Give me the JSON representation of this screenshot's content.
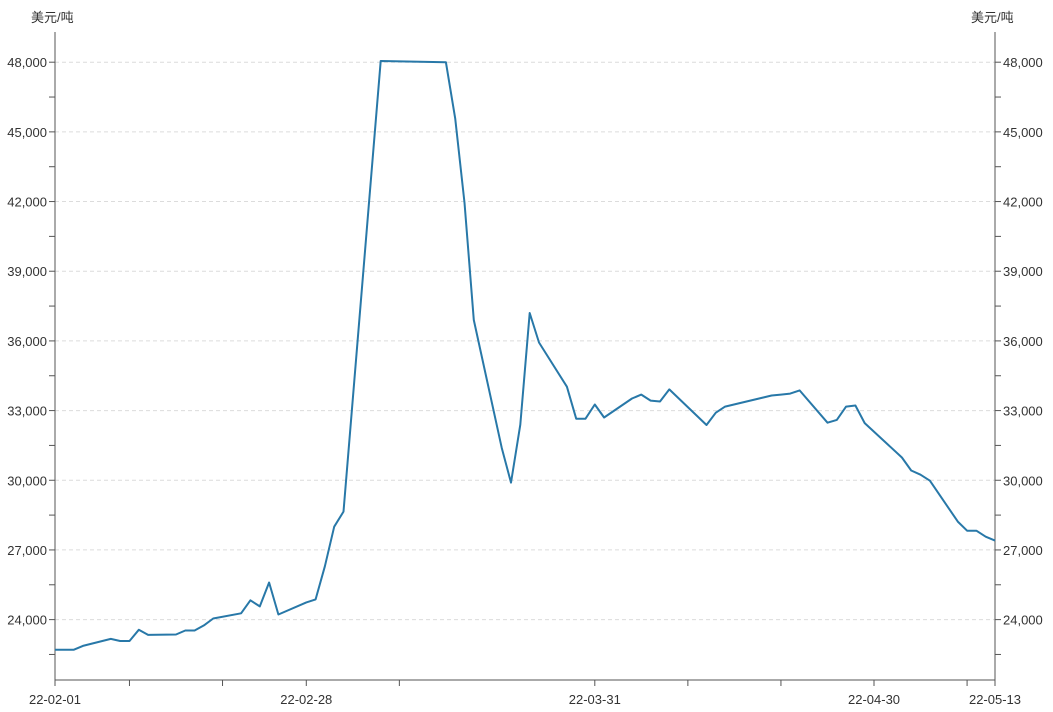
{
  "chart_data": {
    "type": "line",
    "title": "",
    "ylabel_left": "美元/吨",
    "ylabel_right": "美元/吨",
    "xlabel": "",
    "ylim": [
      21400,
      49300
    ],
    "xlim": [
      "2022-02-01",
      "2022-05-13"
    ],
    "y_ticks": [
      24000,
      27000,
      30000,
      33000,
      36000,
      39000,
      42000,
      45000,
      48000
    ],
    "y_tick_labels": [
      "24,000",
      "27,000",
      "30,000",
      "33,000",
      "36,000",
      "39,000",
      "42,000",
      "45,000",
      "48,000"
    ],
    "y_minor_step": 1500,
    "x_ticks": [
      "2022-02-01",
      "2022-02-09",
      "2022-02-19",
      "2022-02-28",
      "2022-03-10",
      "2022-03-31",
      "2022-04-10",
      "2022-04-20",
      "2022-04-30",
      "2022-05-10",
      "2022-05-13"
    ],
    "x_tick_labels": [
      {
        "date": "2022-02-01",
        "label": "22-02-01"
      },
      {
        "date": "2022-02-28",
        "label": "22-02-28"
      },
      {
        "date": "2022-03-31",
        "label": "22-03-31"
      },
      {
        "date": "2022-04-30",
        "label": "22-04-30"
      },
      {
        "date": "2022-05-13",
        "label": "22-05-13"
      }
    ],
    "grid": "horizontal dashed",
    "line_color": "#2878a8",
    "series": [
      {
        "points": [
          [
            "2022-02-01",
            22700
          ],
          [
            "2022-02-03",
            22700
          ],
          [
            "2022-02-04",
            22870
          ],
          [
            "2022-02-07",
            23170
          ],
          [
            "2022-02-08",
            23080
          ],
          [
            "2022-02-09",
            23080
          ],
          [
            "2022-02-10",
            23560
          ],
          [
            "2022-02-11",
            23340
          ],
          [
            "2022-02-14",
            23360
          ],
          [
            "2022-02-15",
            23530
          ],
          [
            "2022-02-16",
            23530
          ],
          [
            "2022-02-17",
            23750
          ],
          [
            "2022-02-18",
            24050
          ],
          [
            "2022-02-21",
            24270
          ],
          [
            "2022-02-22",
            24830
          ],
          [
            "2022-02-23",
            24570
          ],
          [
            "2022-02-24",
            25600
          ],
          [
            "2022-02-25",
            24220
          ],
          [
            "2022-02-28",
            24740
          ],
          [
            "2022-03-01",
            24870
          ],
          [
            "2022-03-02",
            26300
          ],
          [
            "2022-03-03",
            28000
          ],
          [
            "2022-03-04",
            28650
          ],
          [
            "2022-03-08",
            48050
          ],
          [
            "2022-03-15",
            48000
          ],
          [
            "2022-03-16",
            45580
          ],
          [
            "2022-03-17",
            41950
          ],
          [
            "2022-03-18",
            36900
          ],
          [
            "2022-03-21",
            31400
          ],
          [
            "2022-03-22",
            29900
          ],
          [
            "2022-03-23",
            32390
          ],
          [
            "2022-03-24",
            37200
          ],
          [
            "2022-03-25",
            35930
          ],
          [
            "2022-03-28",
            34030
          ],
          [
            "2022-03-29",
            32650
          ],
          [
            "2022-03-30",
            32650
          ],
          [
            "2022-03-31",
            33260
          ],
          [
            "2022-04-01",
            32700
          ],
          [
            "2022-04-04",
            33520
          ],
          [
            "2022-04-05",
            33690
          ],
          [
            "2022-04-06",
            33430
          ],
          [
            "2022-04-07",
            33390
          ],
          [
            "2022-04-08",
            33910
          ],
          [
            "2022-04-12",
            32380
          ],
          [
            "2022-04-13",
            32910
          ],
          [
            "2022-04-14",
            33170
          ],
          [
            "2022-04-19",
            33650
          ],
          [
            "2022-04-20",
            33690
          ],
          [
            "2022-04-21",
            33730
          ],
          [
            "2022-04-22",
            33870
          ],
          [
            "2022-04-25",
            32480
          ],
          [
            "2022-04-26",
            32600
          ],
          [
            "2022-04-27",
            33170
          ],
          [
            "2022-04-28",
            33220
          ],
          [
            "2022-04-29",
            32460
          ],
          [
            "2022-05-03",
            30980
          ],
          [
            "2022-05-04",
            30420
          ],
          [
            "2022-05-05",
            30240
          ],
          [
            "2022-05-06",
            29980
          ],
          [
            "2022-05-09",
            28220
          ],
          [
            "2022-05-10",
            27830
          ],
          [
            "2022-05-11",
            27830
          ],
          [
            "2022-05-12",
            27570
          ],
          [
            "2022-05-13",
            27400
          ]
        ]
      }
    ]
  }
}
